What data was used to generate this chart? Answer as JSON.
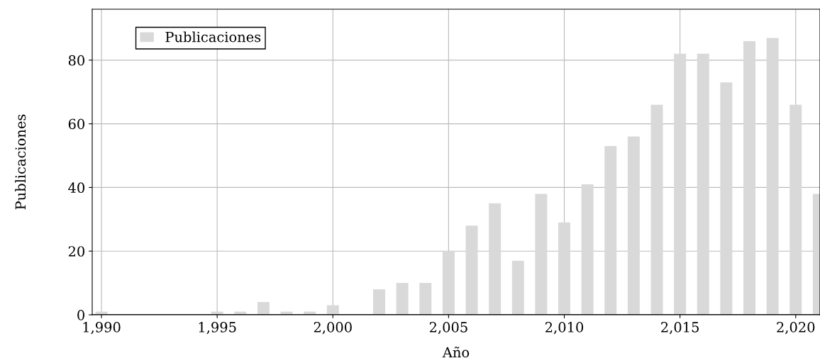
{
  "chart_data": {
    "type": "bar",
    "xlabel": "Año",
    "ylabel": "Publicaciones",
    "x": [
      1990,
      1991,
      1992,
      1993,
      1994,
      1995,
      1996,
      1997,
      1998,
      1999,
      2000,
      2001,
      2002,
      2003,
      2004,
      2005,
      2006,
      2007,
      2008,
      2009,
      2010,
      2011,
      2012,
      2013,
      2014,
      2015,
      2016,
      2017,
      2018,
      2019,
      2020,
      2021
    ],
    "series": [
      {
        "name": "Publicaciones",
        "color": "#d9d9d9",
        "values": [
          1,
          0,
          0,
          0,
          0,
          1,
          1,
          4,
          1,
          1,
          3,
          0,
          8,
          10,
          10,
          20,
          28,
          35,
          17,
          38,
          29,
          41,
          53,
          56,
          66,
          82,
          82,
          73,
          86,
          87,
          66,
          38
        ]
      }
    ],
    "xlim": [
      1989.6,
      2021.05
    ],
    "ylim": [
      0,
      96
    ],
    "xticks": [
      {
        "value": 1990,
        "label": "1,990"
      },
      {
        "value": 1995,
        "label": "1,995"
      },
      {
        "value": 2000,
        "label": "2,000"
      },
      {
        "value": 2005,
        "label": "2,005"
      },
      {
        "value": 2010,
        "label": "2,010"
      },
      {
        "value": 2015,
        "label": "2,015"
      },
      {
        "value": 2020,
        "label": "2,020"
      }
    ],
    "yticks": [
      0,
      20,
      40,
      60,
      80
    ],
    "grid": true,
    "legend": "top left"
  }
}
